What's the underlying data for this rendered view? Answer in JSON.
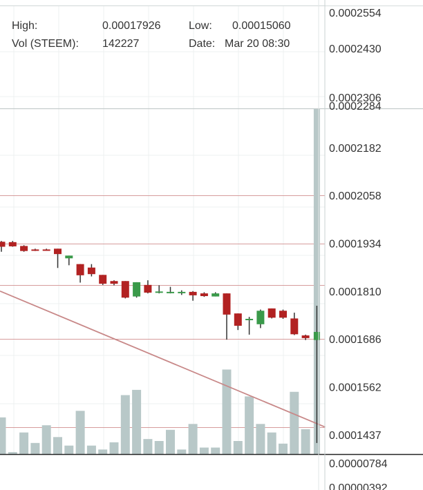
{
  "info": {
    "high_label": "High:",
    "high_value": "0.00017926",
    "low_label": "Low:",
    "low_value": "0.00015060",
    "vol_label": "Vol (STEEM):",
    "vol_value": "142227",
    "date_label": "Date:",
    "date_value": "Mar 20 08:30"
  },
  "chart_data": {
    "type": "candlestick",
    "price_axis_ticks": [
      "0.0002284",
      "0.0002182",
      "0.0002058",
      "0.0001934",
      "0.0001810",
      "0.0001686",
      "0.0001562",
      "0.0001437"
    ],
    "upper_axis_ticks": [
      "0.0002554",
      "0.0002430",
      "0.0002306"
    ],
    "volume_axis_ticks": [
      "0.00000784",
      "0.00000392"
    ],
    "ylim": [
      0.0001405,
      0.0002284
    ],
    "colors": {
      "up": "#3a9a4a",
      "down": "#b22222",
      "volume": "#b8c8c8",
      "trendline": "#c88888",
      "grid_red": "#d69b9b"
    },
    "horizontal_levels": [
      0.0002058,
      0.0001934,
      0.0001825,
      0.0001686,
      0.0001457
    ],
    "trendline": [
      [
        0,
        0.000181
      ],
      [
        29,
        0.0001457
      ]
    ],
    "candles": [
      {
        "o": 0.0001938,
        "h": 0.000194,
        "l": 0.0001912,
        "c": 0.0001925
      },
      {
        "o": 0.0001937,
        "h": 0.000194,
        "l": 0.0001925,
        "c": 0.0001926
      },
      {
        "o": 0.0001927,
        "h": 0.0001929,
        "l": 0.0001912,
        "c": 0.0001914
      },
      {
        "o": 0.0001918,
        "h": 0.000192,
        "l": 0.0001914,
        "c": 0.0001917
      },
      {
        "o": 0.0001918,
        "h": 0.000192,
        "l": 0.0001915,
        "c": 0.0001917
      },
      {
        "o": 0.000192,
        "h": 0.000192,
        "l": 0.000187,
        "c": 0.0001906
      },
      {
        "o": 0.0001895,
        "h": 0.0001902,
        "l": 0.0001877,
        "c": 0.0001902
      },
      {
        "o": 0.000188,
        "h": 0.000188,
        "l": 0.0001832,
        "c": 0.0001851
      },
      {
        "o": 0.0001871,
        "h": 0.000188,
        "l": 0.0001848,
        "c": 0.0001854
      },
      {
        "o": 0.0001852,
        "h": 0.0001852,
        "l": 0.0001826,
        "c": 0.0001829
      },
      {
        "o": 0.0001836,
        "h": 0.0001838,
        "l": 0.0001825,
        "c": 0.0001829
      },
      {
        "o": 0.0001836,
        "h": 0.0001836,
        "l": 0.0001791,
        "c": 0.0001793
      },
      {
        "o": 0.0001796,
        "h": 0.0001833,
        "l": 0.0001793,
        "c": 0.0001833
      },
      {
        "o": 0.0001826,
        "h": 0.0001838,
        "l": 0.0001804,
        "c": 0.0001806
      },
      {
        "o": 0.0001807,
        "h": 0.0001825,
        "l": 0.0001804,
        "c": 0.0001809
      },
      {
        "o": 0.0001808,
        "h": 0.0001821,
        "l": 0.0001804,
        "c": 0.0001808
      },
      {
        "o": 0.0001808,
        "h": 0.0001812,
        "l": 0.00018,
        "c": 0.0001808
      },
      {
        "o": 0.0001808,
        "h": 0.000181,
        "l": 0.0001785,
        "c": 0.0001799
      },
      {
        "o": 0.0001804,
        "h": 0.0001807,
        "l": 0.0001795,
        "c": 0.0001797
      },
      {
        "o": 0.0001796,
        "h": 0.0001807,
        "l": 0.0001796,
        "c": 0.0001804
      },
      {
        "o": 0.0001804,
        "h": 0.0001804,
        "l": 0.0001684,
        "c": 0.0001749
      },
      {
        "o": 0.0001752,
        "h": 0.0001752,
        "l": 0.0001709,
        "c": 0.000172
      },
      {
        "o": 0.0001735,
        "h": 0.0001743,
        "l": 0.0001697,
        "c": 0.0001738
      },
      {
        "o": 0.0001724,
        "h": 0.0001762,
        "l": 0.0001714,
        "c": 0.0001759
      },
      {
        "o": 0.0001765,
        "h": 0.0001765,
        "l": 0.0001739,
        "c": 0.0001741
      },
      {
        "o": 0.0001759,
        "h": 0.0001762,
        "l": 0.0001738,
        "c": 0.0001741
      },
      {
        "o": 0.0001739,
        "h": 0.0001754,
        "l": 0.0001696,
        "c": 0.0001698
      },
      {
        "o": 0.0001695,
        "h": 0.0001697,
        "l": 0.0001683,
        "c": 0.0001688
      },
      {
        "o": 0.0001683,
        "h": 0.0001772,
        "l": 0.0001416,
        "c": 0.0001704
      }
    ],
    "volumes": [
      0.56,
      0.03,
      0.33,
      0.17,
      0.44,
      0.26,
      0.13,
      0.66,
      0.13,
      0.07,
      0.18,
      0.9,
      0.98,
      0.23,
      0.2,
      0.37,
      0.07,
      0.46,
      0.1,
      0.1,
      1.29,
      0.2,
      0.88,
      0.46,
      0.33,
      0.16,
      0.95,
      0.38,
      8.2
    ]
  }
}
